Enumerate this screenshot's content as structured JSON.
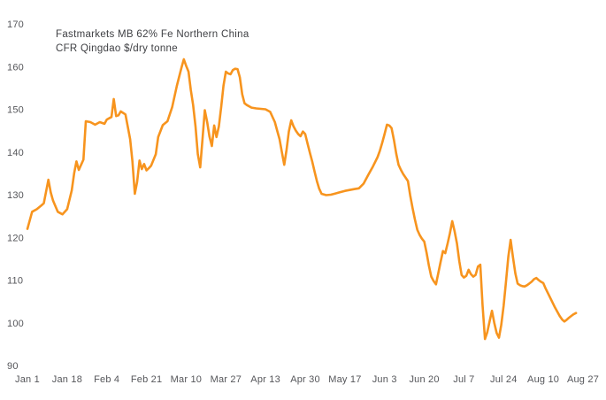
{
  "title": {
    "line1": "Fastmarkets MB 62% Fe Northern China",
    "line2": "CFR Qingdao $/dry tonne"
  },
  "colors": {
    "line": "#F7941E",
    "axis_text": "#55565a",
    "title_text": "#3f4044",
    "background": "#FFFFFF"
  },
  "chart_data": {
    "type": "line",
    "title": "Fastmarkets MB 62% Fe Northern China CFR Qingdao $/dry tonne",
    "xlabel": "",
    "ylabel": "",
    "grid": false,
    "legend": "none",
    "ylim": [
      90,
      170
    ],
    "y_ticks": [
      90,
      100,
      110,
      120,
      130,
      140,
      150,
      160,
      170
    ],
    "xlim_days": [
      0,
      238
    ],
    "x_tick_days": [
      0,
      17,
      34,
      51,
      68,
      85,
      102,
      119,
      136,
      153,
      170,
      187,
      204,
      221,
      238
    ],
    "x_tick_labels": [
      "Jan 1",
      "Jan 18",
      "Feb 4",
      "Feb 21",
      "Mar 10",
      "Mar 27",
      "Apr 13",
      "Apr 30",
      "May 17",
      "Jun 3",
      "Jun 20",
      "Jul 7",
      "Jul 24",
      "Aug 10",
      "Aug 27"
    ],
    "series": [
      {
        "name": "Fastmarkets MB 62% Fe Northern China CFR Qingdao $/dry tonne",
        "points": [
          [
            0,
            122
          ],
          [
            2,
            126
          ],
          [
            4,
            126.6
          ],
          [
            6,
            127.5
          ],
          [
            7,
            128
          ],
          [
            9,
            133.5
          ],
          [
            10,
            130.5
          ],
          [
            11,
            128.6
          ],
          [
            13,
            126
          ],
          [
            15,
            125.4
          ],
          [
            17,
            126.6
          ],
          [
            19,
            131
          ],
          [
            20,
            135
          ],
          [
            21,
            137.8
          ],
          [
            22,
            135.8
          ],
          [
            23,
            137
          ],
          [
            24,
            138.2
          ],
          [
            25,
            147.2
          ],
          [
            27,
            147
          ],
          [
            29,
            146.4
          ],
          [
            31,
            147
          ],
          [
            33,
            146.6
          ],
          [
            34,
            147.6
          ],
          [
            36,
            148.2
          ],
          [
            37,
            152.4
          ],
          [
            38,
            148.4
          ],
          [
            39,
            148.6
          ],
          [
            40,
            149.5
          ],
          [
            42,
            148.8
          ],
          [
            44,
            143
          ],
          [
            45,
            137.8
          ],
          [
            46,
            130.2
          ],
          [
            47,
            133
          ],
          [
            48,
            138
          ],
          [
            49,
            136
          ],
          [
            50,
            137.2
          ],
          [
            51,
            135.7
          ],
          [
            52,
            136.2
          ],
          [
            53,
            136.8
          ],
          [
            55,
            139.5
          ],
          [
            56,
            143.5
          ],
          [
            58,
            146.3
          ],
          [
            60,
            147.2
          ],
          [
            62,
            150.5
          ],
          [
            64,
            155.5
          ],
          [
            66,
            159.8
          ],
          [
            67,
            161.7
          ],
          [
            68,
            160.2
          ],
          [
            69,
            158.8
          ],
          [
            70,
            154.5
          ],
          [
            71,
            151
          ],
          [
            72,
            146
          ],
          [
            73,
            139.5
          ],
          [
            74,
            136.4
          ],
          [
            75,
            143
          ],
          [
            76,
            149.8
          ],
          [
            77,
            147
          ],
          [
            78,
            143.6
          ],
          [
            79,
            141.4
          ],
          [
            80,
            146.2
          ],
          [
            81,
            143.5
          ],
          [
            82,
            146
          ],
          [
            83,
            150.5
          ],
          [
            84,
            155.5
          ],
          [
            85,
            158.8
          ],
          [
            86,
            158.4
          ],
          [
            87,
            158.2
          ],
          [
            88,
            159.2
          ],
          [
            89,
            159.5
          ],
          [
            90,
            159.4
          ],
          [
            91,
            157.5
          ],
          [
            92,
            153.5
          ],
          [
            93,
            151.4
          ],
          [
            94,
            151
          ],
          [
            96,
            150.4
          ],
          [
            98,
            150.2
          ],
          [
            100,
            150.1
          ],
          [
            102,
            150
          ],
          [
            104,
            149.4
          ],
          [
            106,
            147
          ],
          [
            107,
            145
          ],
          [
            108,
            143
          ],
          [
            109,
            140
          ],
          [
            110,
            137
          ],
          [
            111,
            140.5
          ],
          [
            112,
            144.8
          ],
          [
            113,
            147.4
          ],
          [
            114,
            146
          ],
          [
            115,
            145
          ],
          [
            116,
            144.2
          ],
          [
            117,
            143.7
          ],
          [
            118,
            144.8
          ],
          [
            119,
            144.2
          ],
          [
            120,
            142
          ],
          [
            121,
            139.8
          ],
          [
            122,
            137.8
          ],
          [
            123,
            135.4
          ],
          [
            124,
            133.2
          ],
          [
            125,
            131.4
          ],
          [
            126,
            130.2
          ],
          [
            128,
            129.9
          ],
          [
            130,
            130
          ],
          [
            132,
            130.3
          ],
          [
            134,
            130.6
          ],
          [
            136,
            130.9
          ],
          [
            138,
            131.1
          ],
          [
            140,
            131.3
          ],
          [
            142,
            131.5
          ],
          [
            144,
            132.6
          ],
          [
            146,
            134.6
          ],
          [
            148,
            136.6
          ],
          [
            150,
            138.8
          ],
          [
            151,
            140.3
          ],
          [
            152,
            142.2
          ],
          [
            153,
            144.2
          ],
          [
            154,
            146.4
          ],
          [
            155,
            146.2
          ],
          [
            156,
            145.6
          ],
          [
            157,
            142.8
          ],
          [
            158,
            139.6
          ],
          [
            159,
            137
          ],
          [
            160,
            135.8
          ],
          [
            161,
            134.8
          ],
          [
            162,
            134
          ],
          [
            163,
            133.2
          ],
          [
            164,
            129.8
          ],
          [
            165,
            126.8
          ],
          [
            166,
            124.2
          ],
          [
            167,
            121.8
          ],
          [
            168,
            120.6
          ],
          [
            169,
            119.7
          ],
          [
            170,
            119
          ],
          [
            171,
            116.4
          ],
          [
            172,
            113.4
          ],
          [
            173,
            110.8
          ],
          [
            174,
            109.8
          ],
          [
            175,
            109
          ],
          [
            176,
            111.6
          ],
          [
            177,
            114.2
          ],
          [
            178,
            116.8
          ],
          [
            179,
            116.3
          ],
          [
            180,
            118.6
          ],
          [
            181,
            121
          ],
          [
            182,
            123.8
          ],
          [
            183,
            121.4
          ],
          [
            184,
            118.6
          ],
          [
            185,
            114.4
          ],
          [
            186,
            111.2
          ],
          [
            187,
            110.6
          ],
          [
            188,
            111
          ],
          [
            189,
            112.4
          ],
          [
            190,
            111.4
          ],
          [
            191,
            110.8
          ],
          [
            192,
            111.2
          ],
          [
            193,
            113.2
          ],
          [
            194,
            113.6
          ],
          [
            195,
            104
          ],
          [
            196,
            96.2
          ],
          [
            197,
            97.8
          ],
          [
            198,
            100.4
          ],
          [
            199,
            102.8
          ],
          [
            200,
            100
          ],
          [
            201,
            97.6
          ],
          [
            202,
            96.5
          ],
          [
            203,
            99.5
          ],
          [
            204,
            104
          ],
          [
            205,
            109.5
          ],
          [
            206,
            115.5
          ],
          [
            207,
            119.4
          ],
          [
            208,
            115.4
          ],
          [
            209,
            111.6
          ],
          [
            210,
            109.2
          ],
          [
            211,
            108.8
          ],
          [
            212,
            108.6
          ],
          [
            213,
            108.5
          ],
          [
            214,
            108.8
          ],
          [
            215,
            109.2
          ],
          [
            216,
            109.6
          ],
          [
            217,
            110.2
          ],
          [
            218,
            110.5
          ],
          [
            219,
            110
          ],
          [
            220,
            109.6
          ],
          [
            221,
            109.3
          ],
          [
            222,
            108
          ],
          [
            224,
            105.8
          ],
          [
            226,
            103.6
          ],
          [
            228,
            101.6
          ],
          [
            229,
            100.8
          ],
          [
            230,
            100.3
          ],
          [
            231,
            100.7
          ],
          [
            232,
            101.2
          ],
          [
            233,
            101.6
          ],
          [
            234,
            102
          ],
          [
            235,
            102.3
          ]
        ]
      }
    ]
  }
}
